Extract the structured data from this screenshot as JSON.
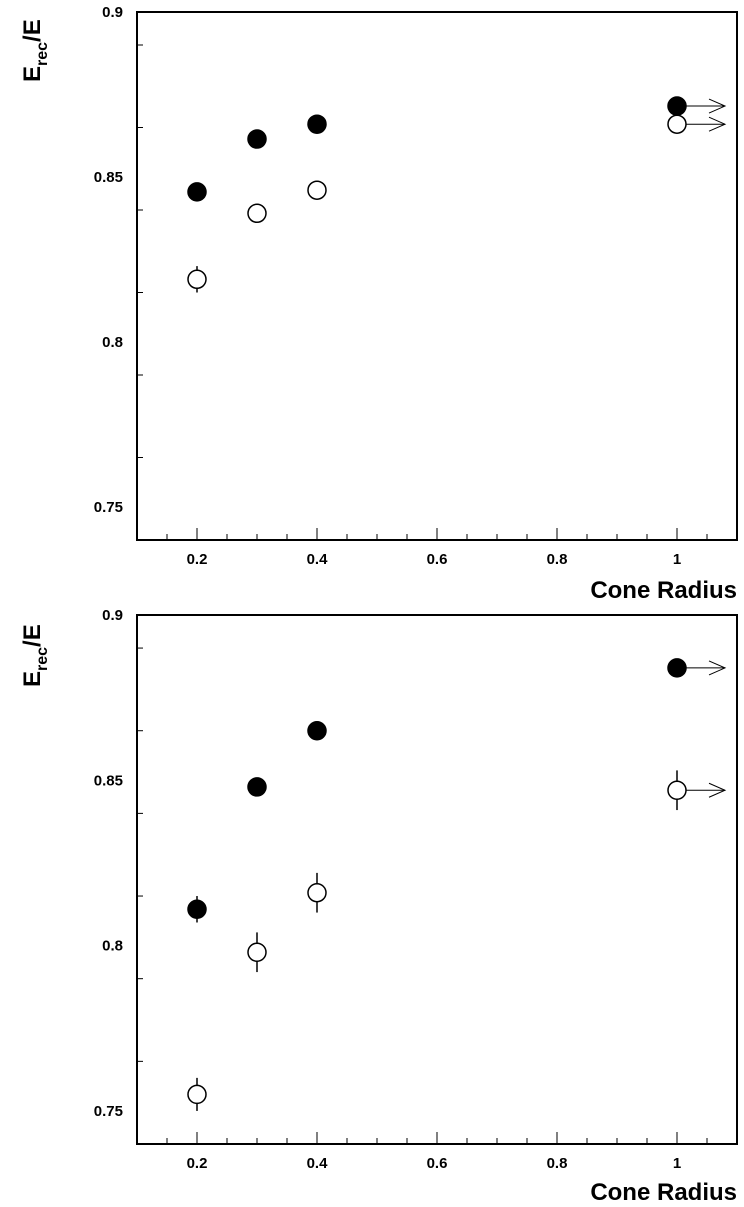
{
  "chart_data": [
    {
      "type": "scatter",
      "xlabel": "Cone Radius",
      "ylabel_main": "E",
      "ylabel_sub": "rec",
      "ylabel_tail": "/E",
      "xlim": [
        0.1,
        1.1
      ],
      "ylim": [
        0.74,
        0.9
      ],
      "x_ticks": [
        0.2,
        0.4,
        0.6,
        0.8,
        1.0
      ],
      "x_tick_labels": [
        "0.2",
        "0.4",
        "0.6",
        "0.8",
        "1"
      ],
      "y_ticks": [
        0.75,
        0.8,
        0.85,
        0.9
      ],
      "y_tick_labels": [
        "0.75",
        "0.8",
        "0.85",
        "0.9"
      ],
      "grid": false,
      "series": [
        {
          "marker": "filled-circle",
          "x": [
            0.2,
            0.3,
            0.4,
            1.0
          ],
          "y": [
            0.8455,
            0.8615,
            0.866,
            0.8715
          ],
          "err": [
            0.002,
            0.002,
            0.002,
            0.002
          ]
        },
        {
          "marker": "open-circle",
          "x": [
            0.2,
            0.3,
            0.4,
            1.0
          ],
          "y": [
            0.819,
            0.839,
            0.846,
            0.866
          ],
          "err": [
            0.004,
            0.002,
            0.002,
            0.002
          ]
        }
      ],
      "arrows_at_x": 1.0
    },
    {
      "type": "scatter",
      "xlabel": "Cone Radius",
      "ylabel_main": "E",
      "ylabel_sub": "rec",
      "ylabel_tail": "/E",
      "xlim": [
        0.1,
        1.1
      ],
      "ylim": [
        0.74,
        0.9
      ],
      "x_ticks": [
        0.2,
        0.4,
        0.6,
        0.8,
        1.0
      ],
      "x_tick_labels": [
        "0.2",
        "0.4",
        "0.6",
        "0.8",
        "1"
      ],
      "y_ticks": [
        0.75,
        0.8,
        0.85,
        0.9
      ],
      "y_tick_labels": [
        "0.75",
        "0.8",
        "0.85",
        "0.9"
      ],
      "grid": false,
      "series": [
        {
          "marker": "filled-circle",
          "x": [
            0.2,
            0.3,
            0.4,
            1.0
          ],
          "y": [
            0.811,
            0.848,
            0.865,
            0.884
          ],
          "err": [
            0.004,
            0.002,
            0.002,
            0.002
          ]
        },
        {
          "marker": "open-circle",
          "x": [
            0.2,
            0.3,
            0.4,
            1.0
          ],
          "y": [
            0.755,
            0.798,
            0.816,
            0.847
          ],
          "err": [
            0.005,
            0.006,
            0.006,
            0.006
          ]
        }
      ],
      "arrows_at_x": 1.0
    }
  ]
}
